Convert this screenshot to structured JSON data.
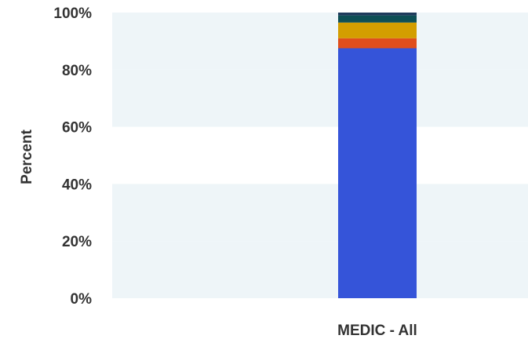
{
  "chart_data": {
    "type": "bar",
    "stacked": true,
    "categories": [
      "MEDIC - All"
    ],
    "series": [
      {
        "values": [
          87.5
        ],
        "color": "#3554d9"
      },
      {
        "values": [
          3.5
        ],
        "color": "#e04e1c"
      },
      {
        "values": [
          5.5
        ],
        "color": "#d39e00"
      },
      {
        "values": [
          2.5
        ],
        "color": "#0d4f55"
      },
      {
        "values": [
          1.0
        ],
        "color": "#1f3b5c"
      }
    ],
    "xlabel": "",
    "ylabel": "Percent",
    "ylim": [
      0,
      100
    ],
    "y_ticks": [
      "0%",
      "20%",
      "40%",
      "60%",
      "80%",
      "100%"
    ],
    "grid": "alternating horizontal bands",
    "band_color": "#eef5f8",
    "legend": "none"
  }
}
